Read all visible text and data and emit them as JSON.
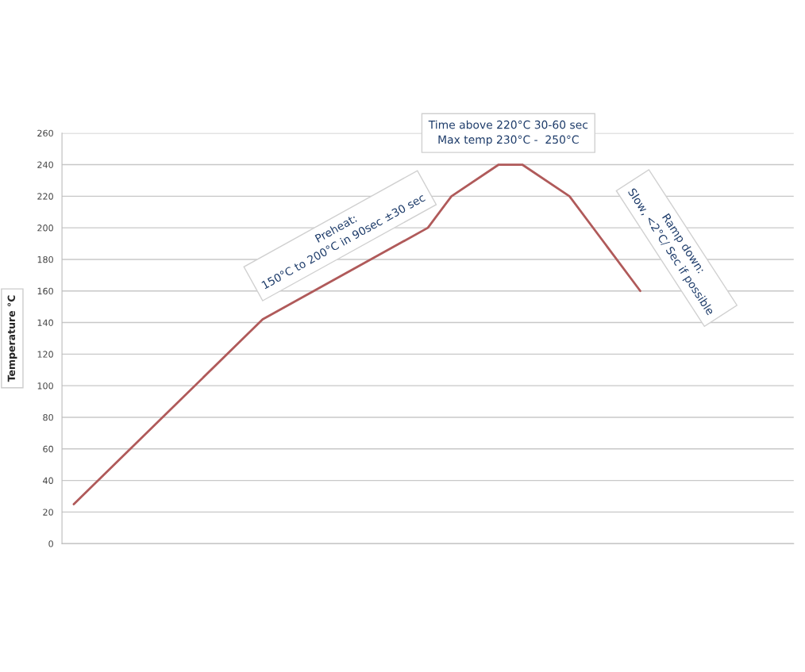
{
  "chart_data": {
    "type": "line",
    "ylabel": "Temperature °C",
    "categories": [
      null,
      null,
      null,
      null,
      null,
      null,
      null,
      null,
      null,
      null,
      null,
      null,
      null,
      null,
      null,
      null,
      null,
      null,
      null,
      null,
      null,
      null,
      null,
      null,
      null,
      null,
      null,
      null,
      null,
      null,
      null
    ],
    "series": [
      {
        "color": "#b05a5a",
        "values": [
          25,
          null,
          null,
          null,
          null,
          null,
          null,
          null,
          142,
          null,
          null,
          null,
          null,
          null,
          null,
          200,
          220,
          null,
          240,
          240,
          null,
          220,
          null,
          null,
          160,
          null,
          null,
          null,
          null,
          null,
          null
        ]
      }
    ],
    "ylim": [
      0,
      260
    ],
    "yticks": [
      0,
      20,
      40,
      60,
      80,
      100,
      120,
      140,
      160,
      180,
      200,
      220,
      240,
      260
    ],
    "grid": "y",
    "tick_labels": "y",
    "marker": "none",
    "line_style": "solid",
    "annotations": [
      "Preheat:\n150°C to 200°C in 90sec ±30 sec",
      "Time above 220°C 30-60 sec\nMax temp 230°C -  250°C",
      "Ramp down:\nSlow, <2°C/ Sec if possible"
    ]
  }
}
